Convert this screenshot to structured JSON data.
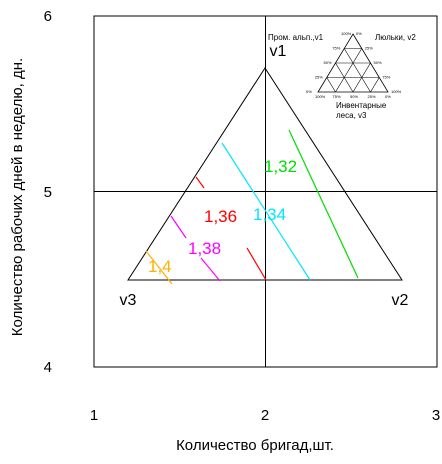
{
  "chart_data": {
    "type": "ternary-contour",
    "xlabel": "Количество бригад,шт.",
    "ylabel": "Количество рабочих дней в неделю, дн.",
    "xlim": [
      1,
      3
    ],
    "ylim": [
      4,
      6
    ],
    "x_ticks": [
      "1",
      "2",
      "3"
    ],
    "y_ticks": [
      "4",
      "5",
      "6"
    ],
    "grid": true,
    "triangle_vertices": [
      {
        "name": "v1",
        "x": 2.0,
        "y": 5.7
      },
      {
        "name": "v2",
        "x": 2.8,
        "y": 4.5
      },
      {
        "name": "v3",
        "x": 1.2,
        "y": 4.5
      }
    ],
    "contours": [
      {
        "label": "1,32",
        "color": "#00dd00"
      },
      {
        "label": "1,34",
        "color": "#00e5ff"
      },
      {
        "label": "1,36",
        "color": "#ff0000"
      },
      {
        "label": "1,38",
        "color": "#ff00ff"
      },
      {
        "label": "1,4",
        "color": "#ffb000"
      }
    ],
    "inset": {
      "v1_label": "Пром. альп.,v1",
      "v2_label": "Люльки, v2",
      "v3_label_line1": "Инвентарные",
      "v3_label_line2": "леса, v3",
      "scale_labels_left": [
        "100%",
        "75%",
        "50%",
        "25%",
        "0%"
      ],
      "scale_labels_right": [
        "0%",
        "25%",
        "50%",
        "75%",
        "100%"
      ],
      "scale_labels_bottom": [
        "100%",
        "75%",
        "50%",
        "25%",
        "0%"
      ]
    }
  }
}
